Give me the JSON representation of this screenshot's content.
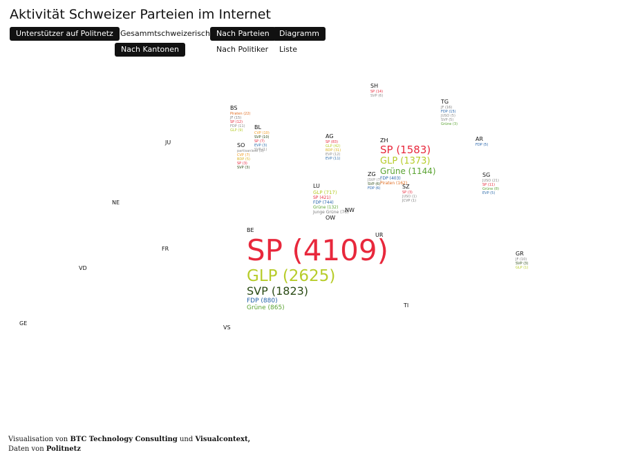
{
  "title": "Aktivität Schweizer Parteien im Internet",
  "controls": {
    "supporters": "Unterstützer auf Politnetz",
    "overall": "Gesammtschweizerisch",
    "by_party": "Nach Parteien",
    "diagram": "Diagramm",
    "by_canton": "Nach Kantonen",
    "by_politician": "Nach Politiker",
    "list": "Liste"
  },
  "colors": {
    "SP": "#e8283c",
    "GLP": "#b7cc2a",
    "SVP": "#2a4a14",
    "FDP": "#1f5fa8",
    "Grüne": "#5aa332",
    "CVP": "#f09a1c",
    "BDP": "#d8b01e",
    "EVP": "#2a6aa8",
    "JUSO": "#8a8a8a",
    "JF": "#7a7a7a",
    "Junge Grüne": "#7a7a7a",
    "JCVP": "#7a7a7a",
    "partisanless": "#8a8a8a",
    "Piraten": "#e06a1c"
  },
  "cantons": [
    {
      "code": "SH",
      "entries": [
        {
          "text": "SP (14)",
          "party": "SP"
        },
        {
          "text": "SVP (6)",
          "party": "JUSO"
        }
      ]
    },
    {
      "code": "TG",
      "entries": [
        {
          "text": "JF (16)",
          "party": "JF"
        },
        {
          "text": "FDP (15)",
          "party": "FDP"
        },
        {
          "text": "JUSO (5)",
          "party": "JUSO"
        },
        {
          "text": "SVP (5)",
          "party": "JUSO"
        },
        {
          "text": "Grüne (3)",
          "party": "Grüne"
        }
      ]
    },
    {
      "code": "BS",
      "entries": [
        {
          "text": "Piraten (22)",
          "party": "Piraten"
        },
        {
          "text": "JF (15)",
          "party": "JF"
        },
        {
          "text": "SP (12)",
          "party": "SP"
        },
        {
          "text": "FDP (11)",
          "party": "JUSO"
        },
        {
          "text": "GLP (9)",
          "party": "GLP"
        }
      ]
    },
    {
      "code": "BL",
      "entries": [
        {
          "text": "CVP (10)",
          "party": "CVP"
        },
        {
          "text": "SVP (10)",
          "party": "SVP"
        },
        {
          "text": "SP (7)",
          "party": "SP"
        },
        {
          "text": "EVP (3)",
          "party": "EVP"
        },
        {
          "text": "SVP (1)",
          "party": "JUSO"
        }
      ]
    },
    {
      "code": "JU",
      "entries": []
    },
    {
      "code": "SO",
      "entries": [
        {
          "text": "partisanless (8)",
          "party": "partisanless"
        },
        {
          "text": "CVP (7)",
          "party": "CVP"
        },
        {
          "text": "BDP (5)",
          "party": "BDP"
        },
        {
          "text": "SP (3)",
          "party": "SP"
        },
        {
          "text": "SVP (3)",
          "party": "SVP"
        }
      ]
    },
    {
      "code": "AG",
      "entries": [
        {
          "text": "SP (83)",
          "party": "SP"
        },
        {
          "text": "GLP (42)",
          "party": "GLP"
        },
        {
          "text": "BDP (31)",
          "party": "BDP"
        },
        {
          "text": "EVP (12)",
          "party": "JUSO"
        },
        {
          "text": "EVP (11)",
          "party": "EVP"
        }
      ]
    },
    {
      "code": "ZH",
      "entries": [
        {
          "text": "SP (1583)",
          "party": "SP"
        },
        {
          "text": "GLP (1373)",
          "party": "GLP"
        },
        {
          "text": "Grüne (1144)",
          "party": "Grüne"
        },
        {
          "text": "FDP (403)",
          "party": "FDP"
        },
        {
          "text": "Piraten (162)",
          "party": "Piraten"
        }
      ]
    },
    {
      "code": "AR",
      "entries": [
        {
          "text": "FDP (5)",
          "party": "FDP"
        }
      ]
    },
    {
      "code": "ZG",
      "entries": [
        {
          "text": "JSVP (7)",
          "party": "JUSO"
        },
        {
          "text": "SVP (6)",
          "party": "SVP"
        },
        {
          "text": "FDP (6)",
          "party": "FDP"
        }
      ]
    },
    {
      "code": "SZ",
      "entries": [
        {
          "text": "SP (3)",
          "party": "SP"
        },
        {
          "text": "JUSO (1)",
          "party": "JUSO"
        },
        {
          "text": "JCVP (1)",
          "party": "JCVP"
        }
      ]
    },
    {
      "code": "SG",
      "entries": [
        {
          "text": "JUSO (21)",
          "party": "JUSO"
        },
        {
          "text": "SP (11)",
          "party": "SP"
        },
        {
          "text": "Grüne (8)",
          "party": "Grüne"
        },
        {
          "text": "EVP (5)",
          "party": "EVP"
        }
      ]
    },
    {
      "code": "NE",
      "entries": []
    },
    {
      "code": "LU",
      "entries": [
        {
          "text": "GLP (717)",
          "party": "GLP"
        },
        {
          "text": "SP (421)",
          "party": "SP"
        },
        {
          "text": "FDP (744)",
          "party": "FDP"
        },
        {
          "text": "Grüne (132)",
          "party": "Grüne"
        },
        {
          "text": "Junge Grüne (76)",
          "party": "Junge Grüne"
        }
      ]
    },
    {
      "code": "NW",
      "entries": []
    },
    {
      "code": "OW",
      "entries": []
    },
    {
      "code": "BE",
      "entries": [
        {
          "text": "SP (4109)",
          "party": "SP"
        },
        {
          "text": "GLP (2625)",
          "party": "GLP"
        },
        {
          "text": "SVP (1823)",
          "party": "SVP"
        },
        {
          "text": "FDP (880)",
          "party": "FDP"
        },
        {
          "text": "Grüne (865)",
          "party": "Grüne"
        }
      ]
    },
    {
      "code": "UR",
      "entries": []
    },
    {
      "code": "FR",
      "entries": []
    },
    {
      "code": "GR",
      "entries": [
        {
          "text": "JF (10)",
          "party": "JF"
        },
        {
          "text": "SVP (3)",
          "party": "SVP"
        },
        {
          "text": "GLP (1)",
          "party": "GLP"
        }
      ]
    },
    {
      "code": "VD",
      "entries": []
    },
    {
      "code": "TI",
      "entries": []
    },
    {
      "code": "GE",
      "entries": []
    },
    {
      "code": "VS",
      "entries": []
    }
  ],
  "footer": {
    "line1_prefix": "Visualisation von",
    "line1_org1": "BTC Technology Consulting",
    "line1_and": "und",
    "line1_org2": "Visualcontext,",
    "line2_prefix": "Daten von",
    "line2_org": "Politnetz"
  }
}
